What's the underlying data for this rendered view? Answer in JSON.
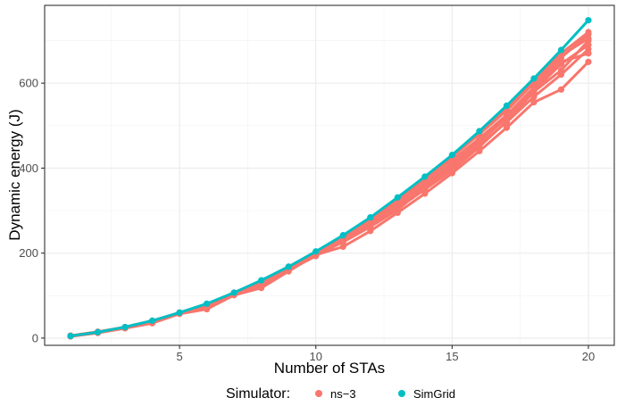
{
  "chart_data": {
    "type": "line",
    "xlabel": "Number of STAs",
    "ylabel": "Dynamic energy (J)",
    "xlim": [
      0.05,
      20.95
    ],
    "ylim": [
      -17,
      783
    ],
    "x_ticks": [
      5,
      10,
      15,
      20
    ],
    "y_ticks": [
      0,
      200,
      400,
      600
    ],
    "grid": true,
    "legend": {
      "title": "Simulator:",
      "placement": "bottom",
      "items": [
        {
          "name": "ns−3",
          "color": "#F8766D"
        },
        {
          "name": "SimGrid",
          "color": "#00BFC4"
        }
      ]
    },
    "x": [
      1,
      2,
      3,
      4,
      5,
      6,
      7,
      8,
      9,
      10,
      11,
      12,
      13,
      14,
      15,
      16,
      17,
      18,
      19,
      20
    ],
    "series": [
      {
        "group": "ns−3",
        "color": "#F8766D",
        "values": [
          5,
          13,
          24,
          38,
          59,
          74,
          105,
          126,
          160,
          193,
          230,
          265,
          305,
          350,
          395,
          450,
          510,
          580,
          630,
          700
        ]
      },
      {
        "group": "ns−3",
        "color": "#F8766D",
        "values": [
          4,
          12,
          23,
          35,
          57,
          68,
          101,
          118,
          157,
          196,
          215,
          252,
          295,
          340,
          388,
          440,
          495,
          555,
          585,
          650
        ]
      },
      {
        "group": "ns−3",
        "color": "#F8766D",
        "values": [
          5,
          14,
          25,
          40,
          59,
          78,
          106,
          133,
          166,
          200,
          238,
          275,
          320,
          372,
          418,
          470,
          525,
          590,
          660,
          715
        ]
      },
      {
        "group": "ns−3",
        "color": "#F8766D",
        "values": [
          6,
          15,
          26,
          41,
          60,
          80,
          107,
          135,
          168,
          203,
          241,
          280,
          328,
          377,
          428,
          482,
          540,
          605,
          670,
          720
        ]
      },
      {
        "group": "ns−3",
        "color": "#F8766D",
        "values": [
          4,
          13,
          24,
          37,
          58,
          72,
          103,
          123,
          160,
          195,
          226,
          262,
          302,
          355,
          400,
          455,
          508,
          568,
          620,
          680
        ]
      },
      {
        "group": "ns−3",
        "color": "#F8766D",
        "values": [
          5,
          13,
          24,
          39,
          59,
          76,
          104,
          129,
          163,
          198,
          234,
          270,
          313,
          365,
          410,
          462,
          518,
          582,
          645,
          690
        ]
      },
      {
        "group": "ns−3",
        "color": "#F8766D",
        "values": [
          5,
          14,
          25,
          38,
          58,
          75,
          104,
          130,
          162,
          197,
          232,
          272,
          310,
          360,
          405,
          465,
          520,
          585,
          650,
          670
        ]
      },
      {
        "group": "ns−3",
        "color": "#F8766D",
        "values": [
          5,
          14,
          25,
          40,
          60,
          79,
          106,
          134,
          167,
          201,
          240,
          278,
          325,
          375,
          426,
          480,
          535,
          600,
          665,
          705
        ]
      },
      {
        "group": "SimGrid",
        "color": "#00BFC4",
        "values": [
          5,
          14,
          26,
          41,
          60,
          81,
          107,
          136,
          168,
          204,
          242,
          284,
          331,
          380,
          431,
          487,
          547,
          611,
          678,
          748
        ]
      }
    ]
  }
}
